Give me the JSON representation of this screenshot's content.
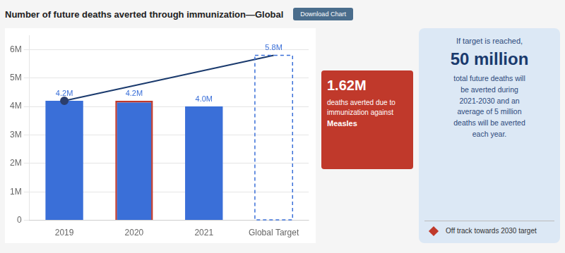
{
  "chart_data": {
    "type": "bar",
    "title": "Number of future deaths averted through immunization—Global",
    "background_color": "#f5f5f5",
    "chart_background": "#ffffff",
    "categories": [
      "2019",
      "2020",
      "2021",
      "Global Target"
    ],
    "values": [
      4200000,
      4200000,
      4000000,
      5800000
    ],
    "value_labels": [
      "4.2M",
      "4.2M",
      "4.0M",
      "5.8M"
    ],
    "data_labels": true,
    "color": "#3a6fd8",
    "line_styles": [
      "solid",
      "solid",
      "solid",
      "dashed"
    ],
    "highlight_index": 1,
    "highlight_color": "#c0392b",
    "connector": {
      "values": [
        4200000,
        null,
        null,
        5800000
      ],
      "color": "#1a3a6d",
      "marker_color": "#2c3e6b"
    },
    "ylim": [
      0,
      6500000
    ],
    "yticks": [
      0,
      {
        "value": 1000000,
        "label": "1M"
      },
      {
        "value": 2000000,
        "label": "2M"
      },
      {
        "value": 3000000,
        "label": "3M"
      },
      {
        "value": 4000000,
        "label": "4M"
      },
      {
        "value": 5000000,
        "label": "5M"
      },
      {
        "value": 6000000,
        "label": "6M"
      }
    ],
    "grid": true,
    "annotation": {
      "title": "1.62M",
      "lines": [
        "deaths averted due to",
        "immunization against"
      ],
      "bold_line": "Measles",
      "color": "#c0392b",
      "text_color": "#ffffff"
    },
    "button": {
      "text": "Download Chart",
      "color": "#4a6d8c",
      "text_color": "#ffffff"
    },
    "sidebar": {
      "lead": "If target is reached,",
      "figure": "50 million",
      "text": "total future deaths will\nbe averted during\n2021-2030 and an\naverage of 5 million\ndeaths will be averted\neach year.",
      "warning": "Off track towards 2030 target",
      "color": "#dce8f5",
      "warning_color": "#c0392b"
    }
  }
}
